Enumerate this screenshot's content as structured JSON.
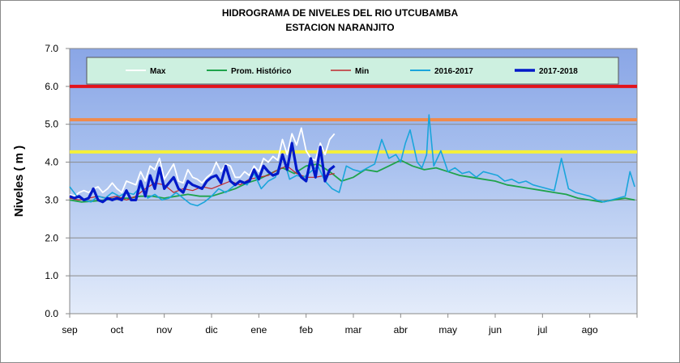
{
  "chart_data": {
    "type": "line",
    "title": "HIDROGRAMA DE NIVELES DEL RIO  UTCUBAMBA",
    "subtitle": "ESTACION  NARANJITO",
    "ylabel": "Niveles ( m )",
    "xlabel": "",
    "ylim": [
      0,
      7
    ],
    "yticks": [
      "0.0",
      "1.0",
      "2.0",
      "3.0",
      "4.0",
      "5.0",
      "6.0",
      "7.0"
    ],
    "x_categories": [
      "sep",
      "oct",
      "nov",
      "dic",
      "ene",
      "feb",
      "mar",
      "abr",
      "may",
      "jun",
      "jul",
      "ago"
    ],
    "grid": true,
    "legend_position": "top",
    "threshold_lines": [
      {
        "value": 6.0,
        "color": "#e3131b"
      },
      {
        "value": 5.12,
        "color": "#f08a4b"
      },
      {
        "value": 4.27,
        "color": "#f5f03a"
      }
    ],
    "series": [
      {
        "name": "Max",
        "color": "#ffffff",
        "x": [
          0.0,
          0.1,
          0.2,
          0.3,
          0.4,
          0.5,
          0.6,
          0.7,
          0.8,
          0.9,
          1.0,
          1.1,
          1.2,
          1.3,
          1.4,
          1.5,
          1.6,
          1.7,
          1.8,
          1.9,
          2.0,
          2.1,
          2.2,
          2.3,
          2.4,
          2.5,
          2.6,
          2.7,
          2.8,
          2.9,
          3.0,
          3.1,
          3.2,
          3.3,
          3.4,
          3.5,
          3.6,
          3.7,
          3.8,
          3.9,
          4.0,
          4.1,
          4.2,
          4.3,
          4.4,
          4.5,
          4.6,
          4.7,
          4.8,
          4.9,
          5.0,
          5.1,
          5.2,
          5.3,
          5.4,
          5.5,
          5.6
        ],
        "values": [
          3.15,
          3.1,
          3.2,
          3.25,
          3.2,
          3.3,
          3.35,
          3.2,
          3.3,
          3.45,
          3.3,
          3.2,
          3.5,
          3.45,
          3.4,
          3.75,
          3.5,
          3.9,
          3.8,
          4.1,
          3.55,
          3.75,
          3.95,
          3.5,
          3.45,
          3.8,
          3.6,
          3.55,
          3.45,
          3.6,
          3.7,
          4.0,
          3.75,
          3.95,
          3.9,
          3.6,
          3.6,
          3.75,
          3.65,
          3.9,
          3.75,
          4.1,
          4.0,
          4.15,
          4.05,
          4.6,
          4.2,
          4.75,
          4.45,
          4.9,
          4.3,
          4.1,
          4.05,
          4.5,
          4.2,
          4.6,
          4.75
        ]
      },
      {
        "name": "Prom. Histórico",
        "color": "#1fa34b",
        "x": [
          0.0,
          0.25,
          0.5,
          0.75,
          1.0,
          1.25,
          1.5,
          1.75,
          2.0,
          2.25,
          2.5,
          2.75,
          3.0,
          3.25,
          3.5,
          3.75,
          4.0,
          4.25,
          4.5,
          4.75,
          5.0,
          5.25,
          5.5,
          5.75,
          6.0,
          6.25,
          6.5,
          6.75,
          7.0,
          7.25,
          7.5,
          7.75,
          8.0,
          8.25,
          8.5,
          8.75,
          9.0,
          9.25,
          9.5,
          9.75,
          10.0,
          10.25,
          10.5,
          10.75,
          11.0,
          11.25,
          11.5,
          11.75,
          11.95
        ],
        "values": [
          3.0,
          2.95,
          2.97,
          3.0,
          3.05,
          3.05,
          3.1,
          3.1,
          3.05,
          3.1,
          3.15,
          3.1,
          3.1,
          3.2,
          3.3,
          3.45,
          3.55,
          3.7,
          3.85,
          3.7,
          3.9,
          3.95,
          3.75,
          3.5,
          3.6,
          3.8,
          3.75,
          3.9,
          4.05,
          3.9,
          3.8,
          3.85,
          3.75,
          3.65,
          3.6,
          3.55,
          3.5,
          3.4,
          3.35,
          3.3,
          3.25,
          3.2,
          3.15,
          3.05,
          3.0,
          2.95,
          3.0,
          3.05,
          3.0
        ]
      },
      {
        "name": "Min",
        "color": "#c0282d",
        "x": [
          0.0,
          0.2,
          0.4,
          0.6,
          0.8,
          1.0,
          1.2,
          1.4,
          1.6,
          1.8,
          2.0,
          2.2,
          2.4,
          2.6,
          2.8,
          3.0,
          3.2,
          3.4,
          3.6,
          3.8,
          4.0,
          4.2,
          4.4,
          4.6,
          4.8,
          5.0,
          5.2,
          5.4,
          5.6
        ],
        "values": [
          3.05,
          3.0,
          3.05,
          3.1,
          3.05,
          3.1,
          3.0,
          3.1,
          3.3,
          3.45,
          3.4,
          3.2,
          3.3,
          3.25,
          3.35,
          3.3,
          3.4,
          3.5,
          3.4,
          3.55,
          3.6,
          3.65,
          3.8,
          3.9,
          3.7,
          3.6,
          3.6,
          3.65,
          3.7
        ]
      },
      {
        "name": "2016-2017",
        "color": "#1aa5db",
        "x": [
          0.0,
          0.15,
          0.3,
          0.45,
          0.6,
          0.75,
          0.9,
          1.05,
          1.2,
          1.35,
          1.5,
          1.65,
          1.8,
          1.95,
          2.1,
          2.25,
          2.4,
          2.55,
          2.7,
          2.85,
          3.0,
          3.15,
          3.3,
          3.45,
          3.6,
          3.75,
          3.9,
          4.05,
          4.2,
          4.35,
          4.5,
          4.65,
          4.8,
          4.95,
          5.1,
          5.25,
          5.4,
          5.55,
          5.7,
          5.85,
          6.0,
          6.15,
          6.3,
          6.45,
          6.6,
          6.75,
          6.9,
          7.0,
          7.1,
          7.2,
          7.35,
          7.45,
          7.55,
          7.6,
          7.7,
          7.85,
          8.0,
          8.15,
          8.3,
          8.45,
          8.6,
          8.75,
          8.9,
          9.05,
          9.2,
          9.35,
          9.5,
          9.65,
          9.8,
          9.95,
          10.1,
          10.25,
          10.4,
          10.55,
          10.7,
          10.85,
          11.0,
          11.15,
          11.3,
          11.45,
          11.6,
          11.75,
          11.85,
          11.95
        ],
        "values": [
          3.35,
          3.1,
          3.0,
          2.95,
          3.1,
          3.05,
          3.2,
          3.1,
          3.2,
          3.15,
          3.35,
          3.05,
          3.15,
          3.0,
          3.05,
          3.2,
          3.05,
          2.9,
          2.85,
          2.95,
          3.1,
          3.3,
          3.2,
          3.35,
          3.5,
          3.4,
          3.7,
          3.3,
          3.5,
          3.6,
          4.2,
          3.55,
          3.65,
          3.6,
          3.75,
          3.9,
          3.5,
          3.3,
          3.2,
          3.9,
          3.8,
          3.75,
          3.85,
          3.95,
          4.6,
          4.1,
          4.2,
          4.0,
          4.5,
          4.85,
          4.0,
          3.85,
          4.2,
          5.25,
          3.9,
          4.3,
          3.75,
          3.85,
          3.7,
          3.75,
          3.6,
          3.75,
          3.7,
          3.65,
          3.5,
          3.55,
          3.45,
          3.5,
          3.4,
          3.35,
          3.3,
          3.25,
          4.1,
          3.3,
          3.2,
          3.15,
          3.1,
          3.0,
          2.95,
          3.0,
          3.05,
          3.1,
          3.75,
          3.35
        ]
      },
      {
        "name": "2017-2018",
        "color": "#0019c8",
        "x": [
          0.0,
          0.1,
          0.2,
          0.3,
          0.4,
          0.5,
          0.6,
          0.7,
          0.8,
          0.9,
          1.0,
          1.1,
          1.2,
          1.3,
          1.4,
          1.5,
          1.6,
          1.7,
          1.8,
          1.9,
          2.0,
          2.1,
          2.2,
          2.3,
          2.4,
          2.5,
          2.6,
          2.7,
          2.8,
          2.9,
          3.0,
          3.1,
          3.2,
          3.3,
          3.4,
          3.5,
          3.6,
          3.7,
          3.8,
          3.9,
          4.0,
          4.1,
          4.2,
          4.3,
          4.4,
          4.5,
          4.6,
          4.7,
          4.8,
          4.9,
          5.0,
          5.1,
          5.2,
          5.3,
          5.4,
          5.5,
          5.6
        ],
        "values": [
          3.1,
          3.05,
          3.1,
          3.0,
          3.05,
          3.3,
          3.0,
          2.95,
          3.05,
          3.0,
          3.05,
          3.0,
          3.25,
          3.0,
          3.0,
          3.5,
          3.1,
          3.65,
          3.3,
          3.85,
          3.3,
          3.45,
          3.6,
          3.3,
          3.2,
          3.5,
          3.4,
          3.35,
          3.3,
          3.5,
          3.6,
          3.65,
          3.45,
          3.9,
          3.5,
          3.4,
          3.5,
          3.45,
          3.5,
          3.8,
          3.55,
          3.9,
          3.75,
          3.65,
          3.7,
          4.2,
          3.8,
          4.5,
          3.8,
          3.6,
          3.5,
          4.1,
          3.6,
          4.4,
          3.5,
          3.8,
          3.9
        ]
      }
    ]
  }
}
